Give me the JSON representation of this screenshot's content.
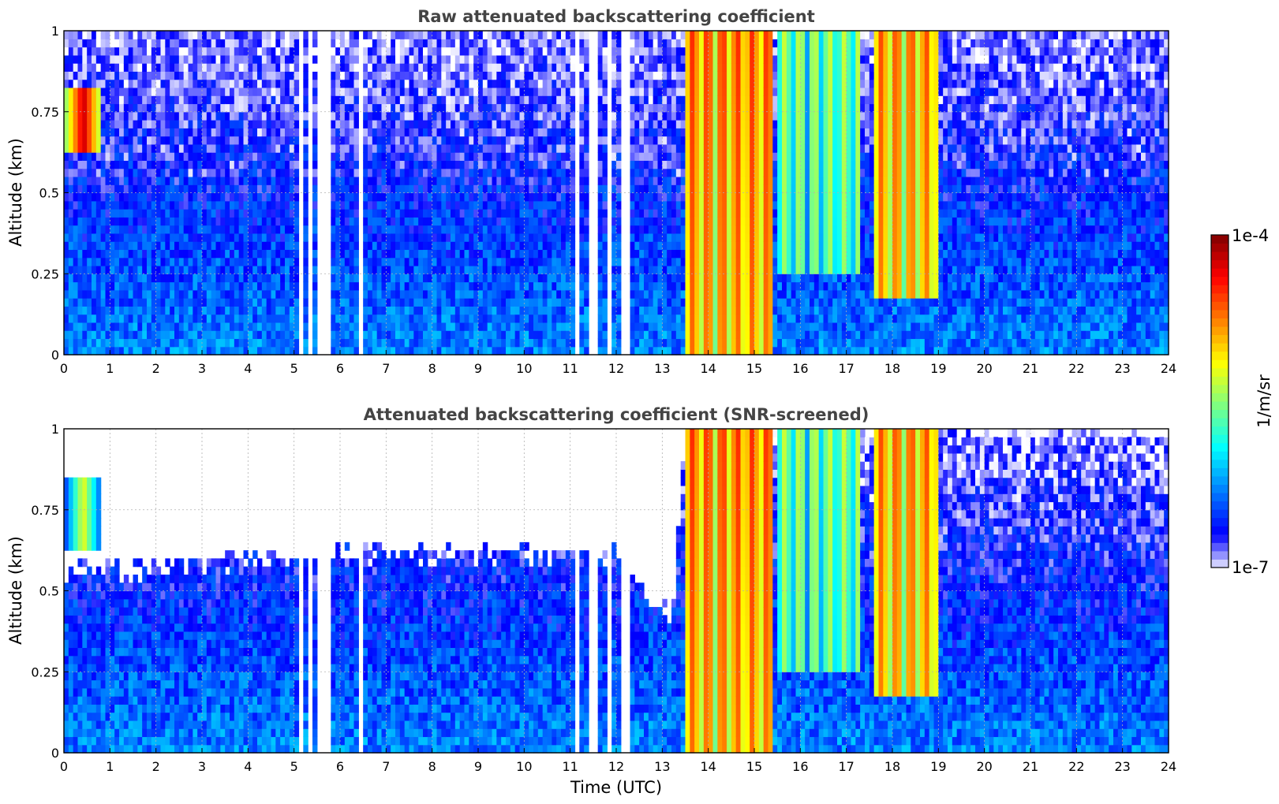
{
  "chart_data": [
    {
      "type": "heatmap",
      "title": "Raw attenuated backscattering coefficient",
      "xlabel": "",
      "ylabel": "Altitude (km)",
      "xlim": [
        0,
        24
      ],
      "ylim": [
        0,
        1
      ],
      "x_ticks": [
        "0",
        "1",
        "2",
        "3",
        "4",
        "5",
        "6",
        "7",
        "8",
        "9",
        "10",
        "11",
        "12",
        "13",
        "14",
        "15",
        "16",
        "17",
        "18",
        "19",
        "20",
        "21",
        "22",
        "23",
        "24"
      ],
      "y_ticks": [
        "0",
        "0.25",
        "0.5",
        "0.75",
        "1"
      ],
      "grid": true,
      "colorscale": "jet",
      "background_level_log10": -6.3,
      "features": [
        {
          "kind": "cloud",
          "x": [
            0.0,
            0.85
          ],
          "y": [
            0.62,
            0.82
          ],
          "peak_log10": -4.2
        },
        {
          "kind": "precipitation_shafts",
          "x": [
            13.5,
            15.4
          ],
          "y": [
            0,
            1
          ],
          "peak_log10": -4.5
        },
        {
          "kind": "precipitation_shafts",
          "x": [
            15.5,
            17.3
          ],
          "y": [
            0.25,
            1
          ],
          "peak_log10": -5.3
        },
        {
          "kind": "precipitation_shafts",
          "x": [
            17.6,
            19.0
          ],
          "y": [
            0.18,
            1
          ],
          "peak_log10": -4.6
        }
      ],
      "missing_data_x": [
        [
          5.15,
          5.2
        ],
        [
          5.3,
          5.4
        ],
        [
          5.5,
          5.75
        ],
        [
          6.45,
          6.48
        ],
        [
          11.15,
          11.22
        ],
        [
          11.38,
          11.48
        ],
        [
          11.5,
          11.6
        ],
        [
          11.85,
          11.9
        ],
        [
          12.1,
          12.2
        ],
        [
          12.25,
          12.3
        ]
      ]
    },
    {
      "type": "heatmap",
      "title": "Attenuated backscattering coefficient (SNR-screened)",
      "xlabel": "Time (UTC)",
      "ylabel": "Altitude (km)",
      "xlim": [
        0,
        24
      ],
      "ylim": [
        0,
        1
      ],
      "x_ticks": [
        "0",
        "1",
        "2",
        "3",
        "4",
        "5",
        "6",
        "7",
        "8",
        "9",
        "10",
        "11",
        "12",
        "13",
        "14",
        "15",
        "16",
        "17",
        "18",
        "19",
        "20",
        "21",
        "22",
        "23",
        "24"
      ],
      "y_ticks": [
        "0",
        "0.25",
        "0.5",
        "0.75",
        "1"
      ],
      "grid": true,
      "colorscale": "jet",
      "background_level_log10": -6.3,
      "screened_above_km": {
        "x": [
          0,
          4,
          8,
          12,
          13.2,
          13.5,
          19,
          24
        ],
        "y": [
          0.55,
          0.6,
          0.62,
          0.62,
          0.4,
          1.0,
          1.0,
          1.0
        ]
      },
      "features": [
        {
          "kind": "cloud",
          "x": [
            0.0,
            0.85
          ],
          "y": [
            0.62,
            0.84
          ],
          "peak_log10": -5.2
        },
        {
          "kind": "precipitation_shafts",
          "x": [
            13.5,
            15.4
          ],
          "y": [
            0,
            1
          ],
          "peak_log10": -4.5
        },
        {
          "kind": "precipitation_shafts",
          "x": [
            15.5,
            17.3
          ],
          "y": [
            0.25,
            1
          ],
          "peak_log10": -5.3
        },
        {
          "kind": "precipitation_shafts",
          "x": [
            17.6,
            19.0
          ],
          "y": [
            0.18,
            1
          ],
          "peak_log10": -4.6
        }
      ],
      "missing_data_x": [
        [
          5.15,
          5.2
        ],
        [
          5.3,
          5.4
        ],
        [
          5.5,
          5.75
        ],
        [
          6.45,
          6.48
        ],
        [
          11.15,
          11.22
        ],
        [
          11.38,
          11.48
        ],
        [
          11.5,
          11.6
        ],
        [
          11.85,
          11.9
        ],
        [
          12.1,
          12.2
        ],
        [
          12.25,
          12.3
        ]
      ]
    }
  ],
  "colorbar": {
    "label": "1/m/sr",
    "max_label": "1e-4",
    "min_label": "1e-7",
    "scale": "log",
    "range_log10": [
      -7,
      -4
    ],
    "levels": 40
  }
}
